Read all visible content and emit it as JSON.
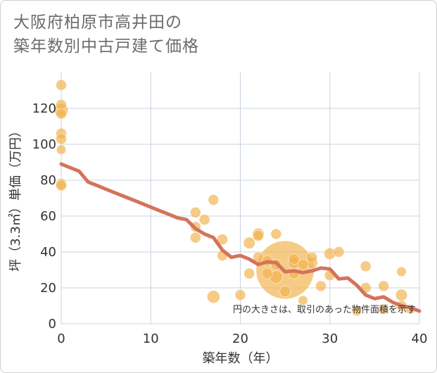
{
  "title": {
    "line1": "大阪府柏原市高井田の",
    "line2": "築年数別中古戸建て価格"
  },
  "colors": {
    "bubble": "#f2b24d",
    "line": "#d4735c",
    "grid": "#c9d3e0",
    "plot_bg": "#ffffff"
  },
  "chart_data": {
    "type": "scatter",
    "xlabel": "築年数（年）",
    "ylabel": "坪（3.3㎡）単価（万円）",
    "xlim": [
      0,
      40
    ],
    "ylim": [
      0,
      140
    ],
    "xticks": [
      0,
      10,
      20,
      30,
      40
    ],
    "yticks": [
      0,
      20,
      40,
      60,
      80,
      100,
      120
    ],
    "grid": true,
    "annotation": "円の大きさは、取引のあった物件面積を示す",
    "bubbles": [
      {
        "x": 0,
        "y": 133,
        "s": 1
      },
      {
        "x": 0,
        "y": 122,
        "s": 1
      },
      {
        "x": 0,
        "y": 119,
        "s": 1.3
      },
      {
        "x": 0,
        "y": 117,
        "s": 1
      },
      {
        "x": 0,
        "y": 106,
        "s": 1
      },
      {
        "x": 0,
        "y": 103,
        "s": 1
      },
      {
        "x": 0,
        "y": 97,
        "s": 0.9
      },
      {
        "x": 0,
        "y": 78,
        "s": 1
      },
      {
        "x": 0,
        "y": 77,
        "s": 1
      },
      {
        "x": 15,
        "y": 62,
        "s": 1
      },
      {
        "x": 15,
        "y": 54,
        "s": 1
      },
      {
        "x": 15,
        "y": 48,
        "s": 1
      },
      {
        "x": 16,
        "y": 58,
        "s": 1
      },
      {
        "x": 17,
        "y": 69,
        "s": 1
      },
      {
        "x": 17,
        "y": 15,
        "s": 1.2
      },
      {
        "x": 18,
        "y": 47,
        "s": 1
      },
      {
        "x": 18,
        "y": 38,
        "s": 1
      },
      {
        "x": 20,
        "y": 16,
        "s": 1
      },
      {
        "x": 21,
        "y": 45,
        "s": 1.1
      },
      {
        "x": 21,
        "y": 28,
        "s": 1
      },
      {
        "x": 22,
        "y": 50,
        "s": 1.1
      },
      {
        "x": 22,
        "y": 49,
        "s": 1
      },
      {
        "x": 22,
        "y": 37,
        "s": 1
      },
      {
        "x": 23,
        "y": 35,
        "s": 1
      },
      {
        "x": 23,
        "y": 28,
        "s": 1
      },
      {
        "x": 24,
        "y": 50,
        "s": 1
      },
      {
        "x": 24,
        "y": 33,
        "s": 1
      },
      {
        "x": 24,
        "y": 26,
        "s": 1.2
      },
      {
        "x": 25,
        "y": 30,
        "s": 5.5
      },
      {
        "x": 25,
        "y": 18,
        "s": 1
      },
      {
        "x": 26,
        "y": 36,
        "s": 1
      },
      {
        "x": 26,
        "y": 34,
        "s": 1.1
      },
      {
        "x": 26,
        "y": 28,
        "s": 1
      },
      {
        "x": 27,
        "y": 33,
        "s": 1
      },
      {
        "x": 27,
        "y": 13,
        "s": 0.9
      },
      {
        "x": 28,
        "y": 37,
        "s": 1
      },
      {
        "x": 28,
        "y": 34,
        "s": 1.1
      },
      {
        "x": 29,
        "y": 21,
        "s": 1
      },
      {
        "x": 30,
        "y": 39,
        "s": 1.1
      },
      {
        "x": 30,
        "y": 27,
        "s": 1
      },
      {
        "x": 31,
        "y": 40,
        "s": 1
      },
      {
        "x": 33,
        "y": 7,
        "s": 0.9
      },
      {
        "x": 34,
        "y": 32,
        "s": 1
      },
      {
        "x": 34,
        "y": 20,
        "s": 1
      },
      {
        "x": 36,
        "y": 21,
        "s": 1
      },
      {
        "x": 36,
        "y": 8,
        "s": 0.9
      },
      {
        "x": 38,
        "y": 29,
        "s": 0.9
      },
      {
        "x": 38,
        "y": 16,
        "s": 1.1
      },
      {
        "x": 38,
        "y": 10,
        "s": 1
      },
      {
        "x": 39,
        "y": 8,
        "s": 0.9
      }
    ],
    "trend_line": {
      "x": [
        0,
        1,
        2,
        3,
        4,
        5,
        6,
        7,
        8,
        9,
        10,
        11,
        12,
        13,
        14,
        15,
        16,
        17,
        18,
        19,
        20,
        21,
        22,
        23,
        24,
        25,
        26,
        27,
        28,
        29,
        30,
        31,
        32,
        33,
        34,
        35,
        36,
        37,
        38,
        39,
        40
      ],
      "y": [
        89,
        87,
        85,
        79,
        77,
        75,
        73,
        71,
        69,
        67,
        65,
        63,
        61,
        59,
        58,
        53,
        50,
        48,
        41,
        37,
        38,
        36,
        33,
        34.5,
        34,
        29,
        29.5,
        28.5,
        29.5,
        31,
        30.5,
        25,
        25.5,
        21.5,
        16,
        14,
        15,
        12,
        10,
        9,
        7
      ]
    }
  }
}
